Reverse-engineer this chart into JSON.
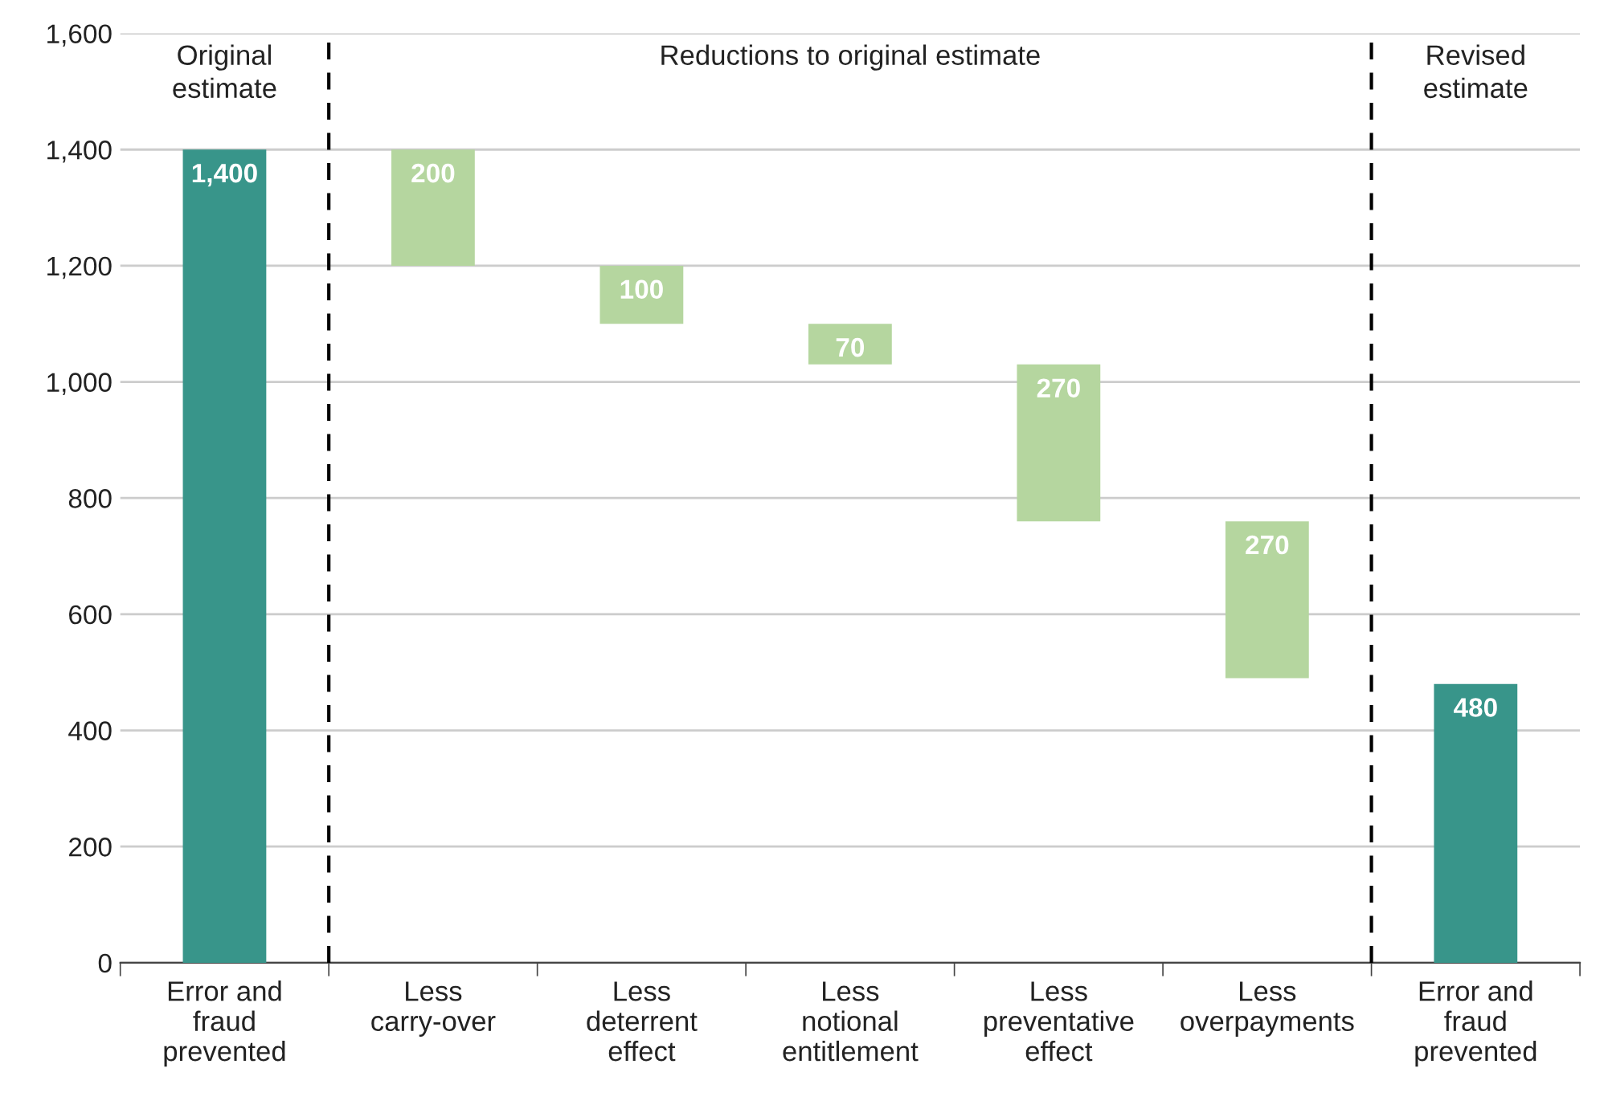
{
  "chart_data": {
    "type": "bar",
    "categories": [
      "Error and\nfraud\nprevented",
      "Less\ncarry-over",
      "Less\ndeterrent\neffect",
      "Less\nnotional\nentitlement",
      "Less\npreventative\neffect",
      "Less\noverpayments",
      "Error and\nfraud\nprevented"
    ],
    "values": [
      1400,
      200,
      100,
      70,
      270,
      270,
      480
    ],
    "base": [
      0,
      1200,
      1100,
      1030,
      760,
      490,
      0
    ],
    "colors": [
      "#38958a",
      "#b5d69f",
      "#b5d69f",
      "#b5d69f",
      "#b5d69f",
      "#b5d69f",
      "#38958a"
    ],
    "value_labels": [
      "1,400",
      "200",
      "100",
      "70",
      "270",
      "270",
      "480"
    ],
    "ylim": [
      0,
      1600
    ],
    "yticks": [
      {
        "value": 0,
        "label": "0"
      },
      {
        "value": 200,
        "label": "200"
      },
      {
        "value": 400,
        "label": "400"
      },
      {
        "value": 600,
        "label": "600"
      },
      {
        "value": 800,
        "label": "800"
      },
      {
        "value": 1000,
        "label": "1,000"
      },
      {
        "value": 1200,
        "label": "1,200"
      },
      {
        "value": 1400,
        "label": "1,400"
      },
      {
        "value": 1600,
        "label": "1,600"
      }
    ],
    "grid": "y",
    "annotations": [
      "Original\nestimate",
      "Reductions to original estimate",
      "Revised\nestimate"
    ]
  }
}
